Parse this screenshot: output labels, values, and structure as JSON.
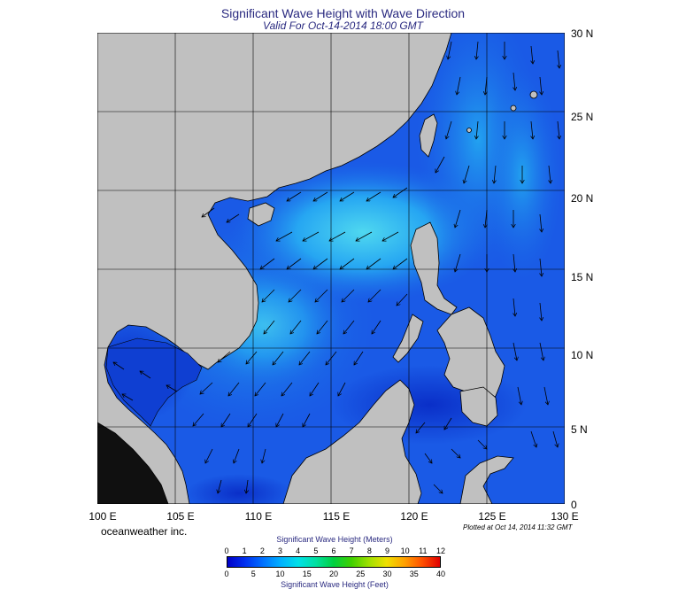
{
  "header": {
    "title": "Significant Wave Height with Wave Direction",
    "subtitle": "Valid For Oct-14-2014 18:00 GMT"
  },
  "map": {
    "lon_min": 100,
    "lon_max": 130,
    "lat_min": 0,
    "lat_max": 30,
    "grid_step_deg": 5,
    "land_color": "#c0c0c0",
    "ocean_base_color": "#1a5ae6",
    "x_tick_labels": [
      "100 E",
      "105 E",
      "110 E",
      "115 E",
      "120 E",
      "125 E",
      "130 E"
    ],
    "y_tick_labels": [
      "30 N",
      "25 N",
      "20 N",
      "15 N",
      "10 N",
      "5 N",
      "0"
    ],
    "wave_direction": "arrows point toward south-west over the South China Sea and toward south east of the Philippines"
  },
  "footer": {
    "credit": "oceanweather inc.",
    "plotted": "Plotted at Oct 14, 2014 11:32 GMT"
  },
  "legend": {
    "meters_title": "Significant Wave Height (Meters)",
    "feet_title": "Significant Wave Height (Feet)",
    "meters_labels": [
      "0",
      "1",
      "2",
      "3",
      "4",
      "5",
      "6",
      "7",
      "8",
      "9",
      "10",
      "11",
      "12"
    ],
    "feet_labels": [
      "0",
      "5",
      "10",
      "15",
      "20",
      "25",
      "30",
      "35",
      "40"
    ],
    "colors": [
      "#0000c8",
      "#0030f0",
      "#0070ff",
      "#00b0ff",
      "#00e0e8",
      "#00e0a0",
      "#00d040",
      "#40d000",
      "#a0e000",
      "#f0e000",
      "#ffa000",
      "#ff5000",
      "#e00000"
    ]
  }
}
